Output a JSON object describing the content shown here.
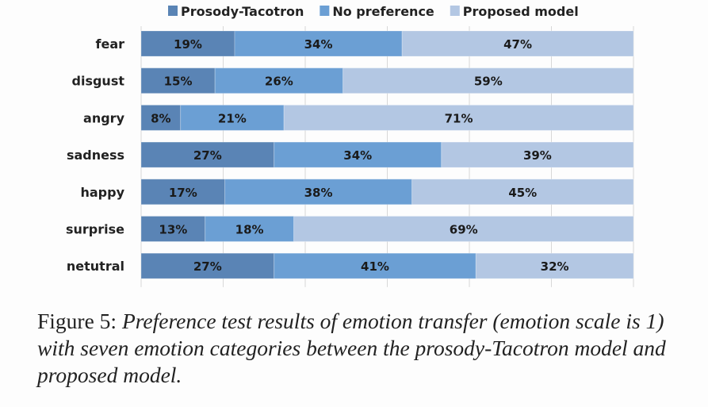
{
  "chart_data": {
    "type": "bar",
    "orientation": "horizontal",
    "stacked": true,
    "categories": [
      "fear",
      "disgust",
      "angry",
      "sadness",
      "happy",
      "surprise",
      "netutral"
    ],
    "series": [
      {
        "name": "Prosody-Tacotron",
        "values": [
          19,
          15,
          8,
          27,
          17,
          13,
          27
        ],
        "color": "#5a84b5"
      },
      {
        "name": "No preference",
        "values": [
          34,
          26,
          21,
          34,
          38,
          18,
          41
        ],
        "color": "#6b9fd4"
      },
      {
        "name": "Proposed model",
        "values": [
          47,
          59,
          71,
          39,
          45,
          69,
          32
        ],
        "color": "#b3c7e3"
      }
    ],
    "value_suffix": "%",
    "xlim": [
      0,
      100
    ],
    "grid": true,
    "legend": "top"
  },
  "caption": {
    "label": "Figure 5:",
    "text": "Preference test results of emotion transfer (emotion scale is 1) with seven emotion categories between the prosody-Tacotron model and proposed model."
  }
}
